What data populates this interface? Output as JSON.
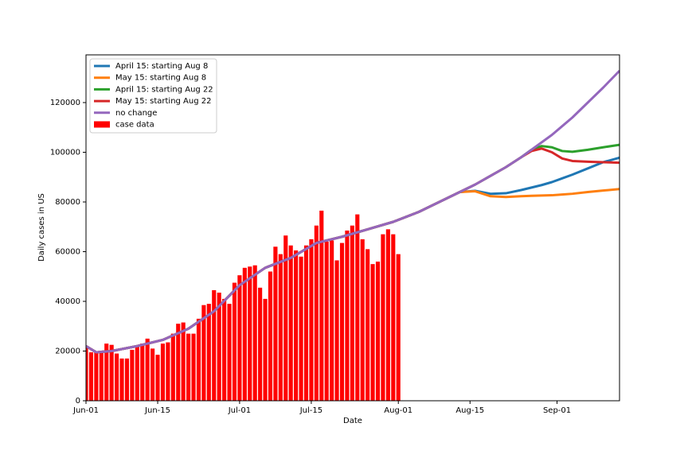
{
  "chart_data": {
    "type": "combo",
    "x_label": "Date",
    "y_label": "Daily cases in US",
    "xlim": [
      0,
      104.2
    ],
    "ylim": [
      0,
      139200
    ],
    "xticks": [
      {
        "value": 0,
        "label": "Jun-01"
      },
      {
        "value": 14,
        "label": "Jun-15"
      },
      {
        "value": 30,
        "label": "Jul-01"
      },
      {
        "value": 44,
        "label": "Jul-15"
      },
      {
        "value": 61,
        "label": "Aug-01"
      },
      {
        "value": 75,
        "label": "Aug-15"
      },
      {
        "value": 92,
        "label": "Sep-01"
      }
    ],
    "yticks": [
      0,
      20000,
      40000,
      60000,
      80000,
      100000,
      120000
    ],
    "grid": false,
    "legend": "upper left",
    "series": [
      {
        "name": "April 15: starting Aug 8",
        "type": "line",
        "color": "#1f77b4",
        "x": [
          0,
          2,
          5,
          10,
          15,
          20,
          25,
          30,
          35,
          40,
          45,
          50,
          55,
          60,
          65,
          70,
          73,
          76,
          79,
          82,
          85,
          87,
          89,
          91,
          93,
          95,
          98,
          101,
          104.2
        ],
        "values": [
          22000,
          19500,
          20000,
          22000,
          24500,
          29000,
          36000,
          46500,
          53500,
          57500,
          63500,
          66000,
          69000,
          72000,
          76000,
          81000,
          84000,
          84500,
          83300,
          83500,
          84800,
          85800,
          86800,
          88000,
          89500,
          91000,
          93500,
          96000,
          97800
        ]
      },
      {
        "name": "May 15: starting Aug 8",
        "type": "line",
        "color": "#ff7f0e",
        "x": [
          0,
          2,
          5,
          10,
          15,
          20,
          25,
          30,
          35,
          40,
          45,
          50,
          55,
          60,
          65,
          70,
          73,
          76,
          79,
          82,
          85,
          87,
          89,
          91,
          93,
          95,
          98,
          101,
          104.2
        ],
        "values": [
          22000,
          19500,
          20000,
          22000,
          24500,
          29000,
          36000,
          46500,
          53500,
          57500,
          63500,
          66000,
          69000,
          72000,
          76000,
          81000,
          84000,
          84300,
          82300,
          82000,
          82300,
          82500,
          82600,
          82700,
          83000,
          83300,
          84000,
          84600,
          85200
        ]
      },
      {
        "name": "April 15: starting Aug 22",
        "type": "line",
        "color": "#2ca02c",
        "x": [
          0,
          2,
          5,
          10,
          15,
          20,
          25,
          30,
          35,
          40,
          45,
          50,
          55,
          60,
          65,
          70,
          73,
          76,
          79,
          82,
          85,
          87,
          89,
          91,
          93,
          95,
          98,
          101,
          104.2
        ],
        "values": [
          22000,
          19500,
          20000,
          22000,
          24500,
          29000,
          36000,
          46500,
          53500,
          57500,
          63500,
          66000,
          69000,
          72000,
          76000,
          81000,
          84000,
          87000,
          90500,
          94000,
          98000,
          101000,
          102500,
          102000,
          100500,
          100200,
          101000,
          102000,
          103000
        ]
      },
      {
        "name": "May 15: starting Aug 22",
        "type": "line",
        "color": "#d62728",
        "x": [
          0,
          2,
          5,
          10,
          15,
          20,
          25,
          30,
          35,
          40,
          45,
          50,
          55,
          60,
          65,
          70,
          73,
          76,
          79,
          82,
          85,
          87,
          89,
          91,
          93,
          95,
          98,
          101,
          104.2
        ],
        "values": [
          22000,
          19500,
          20000,
          22000,
          24500,
          29000,
          36000,
          46500,
          53500,
          57500,
          63500,
          66000,
          69000,
          72000,
          76000,
          81000,
          84000,
          87000,
          90500,
          94000,
          98000,
          100500,
          101500,
          100000,
          97500,
          96500,
          96200,
          96000,
          95800
        ]
      },
      {
        "name": "no change",
        "type": "line",
        "color": "#9467bd",
        "x": [
          0,
          2,
          5,
          10,
          15,
          20,
          25,
          30,
          35,
          40,
          45,
          50,
          55,
          60,
          65,
          70,
          73,
          76,
          79,
          82,
          85,
          87,
          89,
          91,
          93,
          95,
          98,
          101,
          104.2
        ],
        "values": [
          22000,
          19500,
          20000,
          22000,
          24500,
          29000,
          36000,
          46500,
          53500,
          57500,
          63500,
          66000,
          69000,
          72000,
          76000,
          81000,
          84000,
          87000,
          90500,
          94000,
          98000,
          101000,
          104000,
          107000,
          110500,
          114000,
          120000,
          126000,
          132800
        ]
      },
      {
        "name": "case data",
        "type": "bar",
        "color": "#ff0000",
        "x": [
          0,
          1,
          2,
          3,
          4,
          5,
          6,
          7,
          8,
          9,
          10,
          11,
          12,
          13,
          14,
          15,
          16,
          17,
          18,
          19,
          20,
          21,
          22,
          23,
          24,
          25,
          26,
          27,
          28,
          29,
          30,
          31,
          32,
          33,
          34,
          35,
          36,
          37,
          38,
          39,
          40,
          41,
          42,
          43,
          44,
          45,
          46,
          47,
          48,
          49,
          50,
          51,
          52,
          53,
          54,
          55,
          56,
          57,
          58,
          59,
          60,
          61
        ],
        "values": [
          21500,
          19500,
          19500,
          20000,
          23000,
          22500,
          19000,
          17000,
          17000,
          20500,
          22000,
          23000,
          25000,
          21000,
          18500,
          23000,
          23500,
          27000,
          31000,
          31500,
          27000,
          27000,
          33000,
          38500,
          39000,
          44500,
          43500,
          41000,
          39000,
          47500,
          50500,
          53500,
          54000,
          54500,
          45500,
          41000,
          52000,
          62000,
          59000,
          66500,
          62500,
          60500,
          58000,
          62500,
          65000,
          70500,
          76500,
          64000,
          64500,
          56500,
          63500,
          68500,
          70500,
          75000,
          65000,
          61000,
          55000,
          56000,
          67000,
          69000,
          67000,
          59000
        ]
      }
    ]
  }
}
